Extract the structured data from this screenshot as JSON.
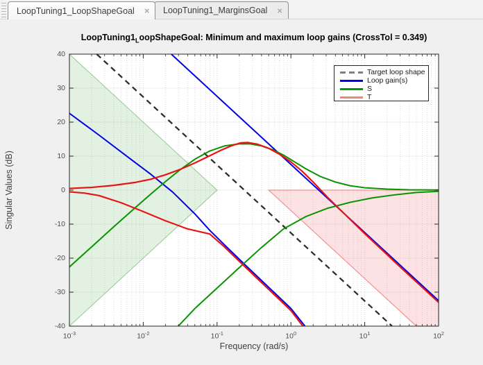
{
  "tab_bar": {
    "tabs": [
      {
        "label": "LoopTuning1_LoopShapeGoal",
        "close_glyph": "×",
        "active": true
      },
      {
        "label": "LoopTuning1_MarginsGoal",
        "close_glyph": "×",
        "active": false
      }
    ]
  },
  "chart_data": {
    "type": "line",
    "title": {
      "prefix": "LoopTuning1",
      "subscript": "L",
      "rest": "oopShapeGoal: Minimum and maximum loop gains (CrossTol = 0.349)"
    },
    "xlabel": "Frequency (rad/s)",
    "ylabel": "Singular Values (dB)",
    "x_scale": "log10",
    "xlim_log10": [
      -3,
      2
    ],
    "ylim": [
      -40,
      40
    ],
    "x_ticks": [
      {
        "base": "10",
        "exp": "-3"
      },
      {
        "base": "10",
        "exp": "-2"
      },
      {
        "base": "10",
        "exp": "-1"
      },
      {
        "base": "10",
        "exp": "0"
      },
      {
        "base": "10",
        "exp": "1"
      },
      {
        "base": "10",
        "exp": "2"
      }
    ],
    "y_ticks": [
      40,
      30,
      20,
      10,
      0,
      -10,
      -20,
      -30,
      -40
    ],
    "grid": {
      "vertical_dotted_log_minor": true,
      "horizontal_major": true
    },
    "colors": {
      "target": "#2e2e2e",
      "loop_gain": "#0000e6",
      "sensitivity": "#089400",
      "comp_sensitivity": "#e81414",
      "min_bound_fill": "rgba(100,175,100,0.18)",
      "min_bound_edge": "rgba(100,175,100,0.55)",
      "max_bound_fill": "rgba(242,125,125,0.22)",
      "max_bound_edge": "rgba(240,130,130,0.85)"
    },
    "legend": {
      "position": "top-right",
      "entries": [
        {
          "label": "Target loop shape",
          "color": "#7f7f7f",
          "dash": true
        },
        {
          "label": "Loop gain(s)",
          "color": "#0000ee",
          "dash": false
        },
        {
          "label": "S",
          "color": "#009900",
          "dash": false
        },
        {
          "label": "T",
          "color": "#f28080",
          "dash": false
        }
      ]
    },
    "regions": [
      {
        "name": "min-loop-gain-bound",
        "points": [
          [
            -3,
            40
          ],
          [
            -1,
            0
          ],
          [
            -3,
            -40
          ]
        ]
      },
      {
        "name": "max-loop-gain-bound",
        "points": [
          [
            -0.301,
            0
          ],
          [
            2,
            0
          ],
          [
            2,
            -40
          ],
          [
            1.699,
            -40
          ]
        ]
      }
    ],
    "series": [
      {
        "name": "Target loop shape",
        "style": "dashed",
        "points": [
          [
            -2.63,
            40
          ],
          [
            1.37,
            -40
          ]
        ]
      },
      {
        "name": "Loop gain max",
        "style": "loop_gain",
        "points": [
          [
            -1.62,
            40
          ],
          [
            2,
            -32.5
          ]
        ]
      },
      {
        "name": "Loop gain min",
        "style": "loop_gain",
        "points": [
          [
            -3,
            22.6
          ],
          [
            -2.6,
            16.2
          ],
          [
            -2.2,
            9.6
          ],
          [
            -1.9,
            4.7
          ],
          [
            -1.6,
            -0.6
          ],
          [
            -1.3,
            -7.0
          ],
          [
            -1.1,
            -11.8
          ],
          [
            -0.9,
            -16.1
          ],
          [
            -0.6,
            -22.4
          ],
          [
            -0.3,
            -28.6
          ],
          [
            0,
            -34.8
          ],
          [
            0.22,
            -40.8
          ]
        ]
      },
      {
        "name": "S max",
        "style": "sensitivity",
        "points": [
          [
            -3,
            -22.6
          ],
          [
            -2.7,
            -16.7
          ],
          [
            -2.4,
            -10.8
          ],
          [
            -2.1,
            -5.0
          ],
          [
            -1.9,
            -1.2
          ],
          [
            -1.7,
            2.5
          ],
          [
            -1.5,
            6.0
          ],
          [
            -1.3,
            9.1
          ],
          [
            -1.1,
            11.5
          ],
          [
            -0.9,
            13.0
          ],
          [
            -0.7,
            13.6
          ],
          [
            -0.55,
            13.6
          ],
          [
            -0.4,
            13.0
          ],
          [
            -0.25,
            11.9
          ],
          [
            -0.1,
            10.3
          ],
          [
            0.05,
            8.3
          ],
          [
            0.2,
            6.3
          ],
          [
            0.4,
            4.0
          ],
          [
            0.6,
            2.4
          ],
          [
            0.8,
            1.3
          ],
          [
            1.0,
            0.7
          ],
          [
            1.3,
            0.3
          ],
          [
            1.6,
            0.1
          ],
          [
            2,
            0.05
          ]
        ]
      },
      {
        "name": "S min",
        "style": "sensitivity",
        "points": [
          [
            -1.56,
            -40.8
          ],
          [
            -1.3,
            -34.8
          ],
          [
            -1.0,
            -28.8
          ],
          [
            -0.7,
            -22.8
          ],
          [
            -0.4,
            -16.9
          ],
          [
            -0.1,
            -11.4
          ],
          [
            0.2,
            -7.8
          ],
          [
            0.5,
            -5.3
          ],
          [
            0.8,
            -3.6
          ],
          [
            1.1,
            -2.3
          ],
          [
            1.4,
            -1.4
          ],
          [
            1.7,
            -0.7
          ],
          [
            2,
            -0.35
          ]
        ]
      },
      {
        "name": "T max",
        "style": "comp_sensitivity",
        "points": [
          [
            -3,
            0.5
          ],
          [
            -2.7,
            0.8
          ],
          [
            -2.4,
            1.4
          ],
          [
            -2.1,
            2.3
          ],
          [
            -1.9,
            3.2
          ],
          [
            -1.7,
            4.5
          ],
          [
            -1.5,
            6.1
          ],
          [
            -1.3,
            8.0
          ],
          [
            -1.1,
            10.1
          ],
          [
            -0.95,
            11.7
          ],
          [
            -0.8,
            13.1
          ],
          [
            -0.68,
            13.9
          ],
          [
            -0.58,
            14.0
          ],
          [
            -0.45,
            13.5
          ],
          [
            -0.3,
            12.3
          ],
          [
            -0.15,
            10.5
          ],
          [
            0,
            8.3
          ],
          [
            0.15,
            5.6
          ],
          [
            0.3,
            2.4
          ],
          [
            0.5,
            -2.2
          ],
          [
            0.75,
            -7.5
          ],
          [
            1.0,
            -12.8
          ],
          [
            1.5,
            -23.0
          ],
          [
            2,
            -33.0
          ]
        ]
      },
      {
        "name": "T min",
        "style": "comp_sensitivity",
        "points": [
          [
            -3,
            -0.5
          ],
          [
            -2.8,
            -0.85
          ],
          [
            -2.6,
            -1.6
          ],
          [
            -2.3,
            -3.7
          ],
          [
            -2.0,
            -6.3
          ],
          [
            -1.7,
            -9.0
          ],
          [
            -1.4,
            -11.4
          ],
          [
            -1.1,
            -12.9
          ],
          [
            -0.9,
            -16.7
          ],
          [
            -0.6,
            -23.0
          ],
          [
            -0.3,
            -29.2
          ],
          [
            0,
            -35.4
          ],
          [
            0.19,
            -40.8
          ]
        ]
      }
    ]
  }
}
